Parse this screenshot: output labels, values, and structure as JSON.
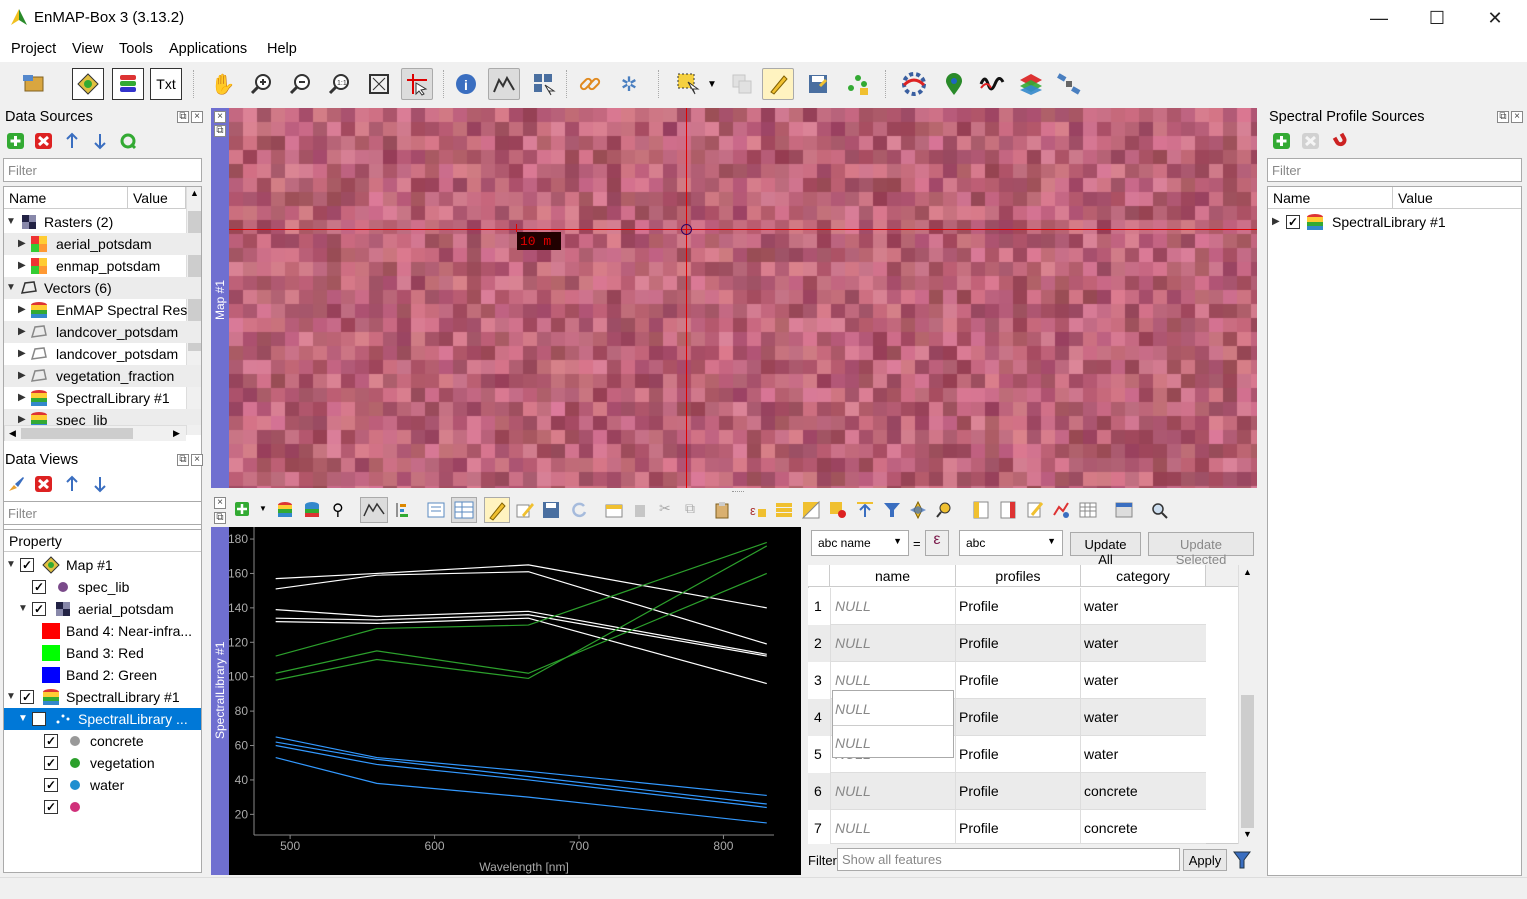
{
  "window": {
    "title": "EnMAP-Box 3 (3.13.2)",
    "minimize": "—",
    "maximize": "☐",
    "close": "✕"
  },
  "menu": [
    "Project",
    "View",
    "Tools",
    "Applications",
    "Help"
  ],
  "data_sources": {
    "title": "Data Sources",
    "filter_placeholder": "Filter",
    "col_name": "Name",
    "col_value": "Value",
    "rows": [
      {
        "label": "Rasters (2)"
      },
      {
        "label": "aerial_potsdam"
      },
      {
        "label": "enmap_potsdam"
      },
      {
        "label": "Vectors (6)"
      },
      {
        "label": "EnMAP Spectral Res"
      },
      {
        "label": "landcover_potsdam"
      },
      {
        "label": "landcover_potsdam"
      },
      {
        "label": "vegetation_fraction"
      },
      {
        "label": "SpectralLibrary #1"
      },
      {
        "label": "spec_lib"
      }
    ]
  },
  "data_views": {
    "title": "Data Views",
    "filter_placeholder": "Filter",
    "col_property": "Property",
    "rows": [
      {
        "label": "Map #1"
      },
      {
        "label": "spec_lib"
      },
      {
        "label": "aerial_potsdam"
      },
      {
        "label": "Band 4: Near-infra..."
      },
      {
        "label": "Band 3: Red"
      },
      {
        "label": "Band 2: Green"
      },
      {
        "label": "SpectralLibrary #1"
      },
      {
        "label": "SpectralLibrary ..."
      },
      {
        "label": "concrete"
      },
      {
        "label": "vegetation"
      },
      {
        "label": "water"
      },
      {
        "label": ""
      }
    ]
  },
  "map": {
    "side_label": "Map #1",
    "scale_label": "10 m"
  },
  "spectral_side_label": "SpectralLibrary #1",
  "profile_sources": {
    "title": "Spectral Profile Sources",
    "filter_placeholder": "Filter",
    "col_name": "Name",
    "col_value": "Value",
    "item": "SpectralLibrary #1"
  },
  "editor": {
    "field_combo": "abc name",
    "equals": "=",
    "epsilon": "ε",
    "value_combo": "abc",
    "update_all": "Update All",
    "update_selected": "Update Selected"
  },
  "table": {
    "headers": [
      "name",
      "profiles",
      "category"
    ],
    "rows": [
      {
        "n": "1",
        "name": "NULL",
        "profile": "Profile",
        "category": "water"
      },
      {
        "n": "2",
        "name": "NULL",
        "profile": "Profile",
        "category": "water"
      },
      {
        "n": "3",
        "name": "NULL",
        "profile": "Profile",
        "category": "water"
      },
      {
        "n": "4",
        "name": "NULL",
        "profile": "Profile",
        "category": "water"
      },
      {
        "n": "5",
        "name": "NULL",
        "profile": "Profile",
        "category": "water"
      },
      {
        "n": "6",
        "name": "NULL",
        "profile": "Profile",
        "category": "concrete"
      },
      {
        "n": "7",
        "name": "NULL",
        "profile": "Profile",
        "category": "concrete"
      }
    ],
    "filter_label": "Filter",
    "filter_placeholder": "Show all features",
    "apply": "Apply"
  },
  "colors": {
    "vegetation": "#2ca02c",
    "water": "#3399ff",
    "concrete": "#ffffff",
    "panel_side": "#6f6fd0",
    "crosshair": "#e00000"
  },
  "chart_data": {
    "type": "line",
    "xlabel": "Wavelength [nm]",
    "ylabel": "",
    "xlim": [
      475,
      835
    ],
    "ylim": [
      8,
      187
    ],
    "xticks": [
      500,
      600,
      700,
      800
    ],
    "yticks": [
      20,
      40,
      60,
      80,
      100,
      120,
      140,
      160,
      180
    ],
    "x": [
      490,
      560,
      665,
      830
    ],
    "series": [
      {
        "group": "concrete",
        "color": "#ffffff",
        "values": [
          157,
          160,
          165,
          140
        ]
      },
      {
        "group": "concrete",
        "color": "#ffffff",
        "values": [
          151,
          159,
          161,
          119
        ]
      },
      {
        "group": "concrete",
        "color": "#ffffff",
        "values": [
          139,
          135,
          138,
          113
        ]
      },
      {
        "group": "concrete",
        "color": "#ffffff",
        "values": [
          134,
          133,
          136,
          112
        ]
      },
      {
        "group": "concrete",
        "color": "#ffffff",
        "values": [
          132,
          131,
          134,
          96
        ]
      },
      {
        "group": "vegetation",
        "color": "#2ca02c",
        "values": [
          112,
          128,
          130,
          178
        ]
      },
      {
        "group": "vegetation",
        "color": "#2ca02c",
        "values": [
          102,
          115,
          102,
          160
        ]
      },
      {
        "group": "vegetation",
        "color": "#2ca02c",
        "values": [
          98,
          110,
          99,
          176
        ]
      },
      {
        "group": "water",
        "color": "#3399ff",
        "values": [
          65,
          53,
          45,
          31
        ]
      },
      {
        "group": "water",
        "color": "#3399ff",
        "values": [
          62,
          52,
          42,
          26
        ]
      },
      {
        "group": "water",
        "color": "#3399ff",
        "values": [
          60,
          49,
          40,
          24
        ]
      },
      {
        "group": "water",
        "color": "#3399ff",
        "values": [
          53,
          38,
          30,
          15
        ]
      }
    ]
  }
}
